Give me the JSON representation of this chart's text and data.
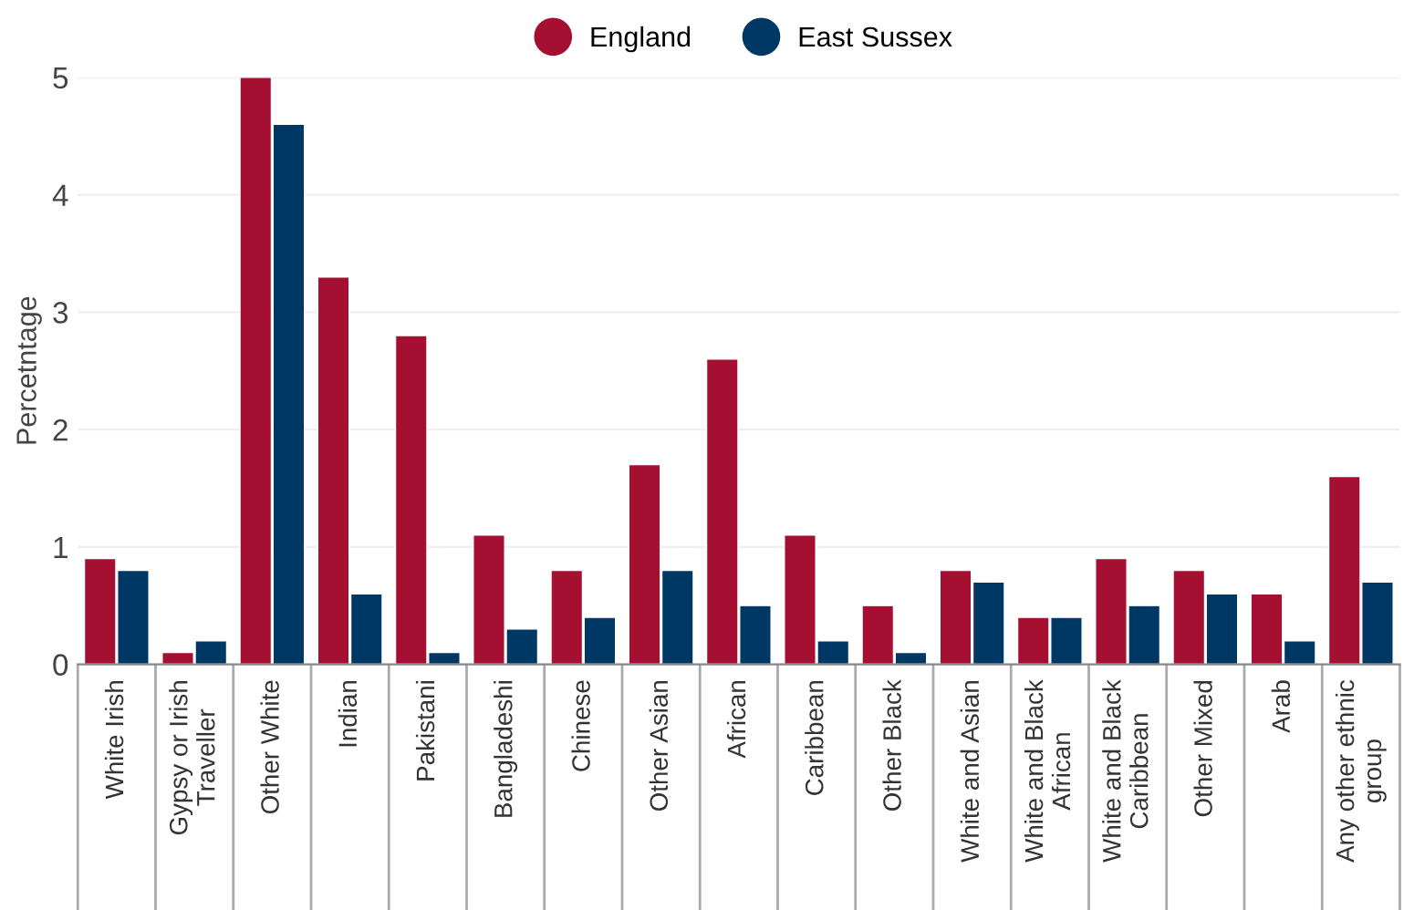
{
  "chart_data": {
    "type": "bar",
    "ylabel": "Percetntage",
    "categories": [
      "White Irish",
      "Gypsy or Irish\nTraveller",
      "Other White",
      "Indian",
      "Pakistani",
      "Bangladeshi",
      "Chinese",
      "Other Asian",
      "African",
      "Caribbean",
      "Other Black",
      "White and Asian",
      "White and Black\nAfrican",
      "White and Black\nCaribbean",
      "Other Mixed",
      "Arab",
      "Any other ethnic\ngroup"
    ],
    "series": [
      {
        "name": "England",
        "color": "#a50f32",
        "values": [
          0.9,
          0.1,
          5.0,
          3.3,
          2.8,
          1.1,
          0.8,
          1.7,
          2.6,
          1.1,
          0.5,
          0.8,
          0.4,
          0.9,
          0.8,
          0.6,
          1.6
        ]
      },
      {
        "name": "East Sussex",
        "color": "#003865",
        "values": [
          0.8,
          0.2,
          4.6,
          0.6,
          0.1,
          0.3,
          0.4,
          0.8,
          0.5,
          0.2,
          0.1,
          0.7,
          0.4,
          0.5,
          0.6,
          0.2,
          0.7
        ]
      }
    ],
    "ylim": [
      0,
      5
    ],
    "yticks": [
      0,
      1,
      2,
      3,
      4,
      5
    ],
    "grid": "y",
    "legend": "top"
  }
}
